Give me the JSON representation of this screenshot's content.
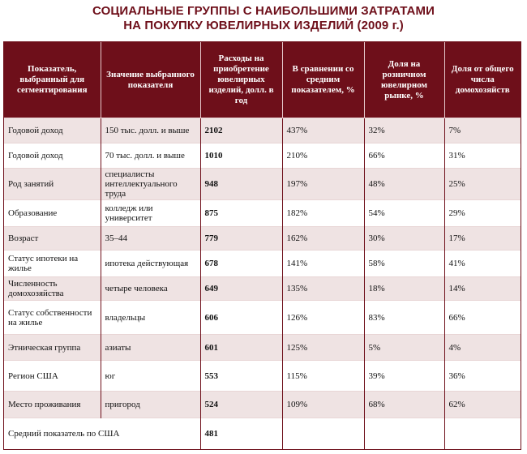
{
  "title": {
    "line1": "СОЦИАЛЬНЫЕ ГРУППЫ С НАИБОЛЬШИМИ ЗАТРАТАМИ",
    "line2": "НА ПОКУПКУ ЮВЕЛИРНЫХ ИЗДЕЛИЙ (2009 г.)"
  },
  "table": {
    "headers": [
      "Показатель, выбранный для сегментирования",
      "Значение выбранного показателя",
      "Расходы на приобретение ювелирных изделий, долл. в год",
      "В сравнении со средним показателем, %",
      "Доля на розничном ювелирном рынке, %",
      "Доля от общего числа домохозяйств"
    ],
    "rows": [
      {
        "indicator": "Годовой доход",
        "value": "150 тыс. долл. и выше",
        "expense": "2102",
        "vs_avg": "437%",
        "market_share": "32%",
        "household_share": "7%"
      },
      {
        "indicator": "Годовой доход",
        "value": "70 тыс. долл. и выше",
        "expense": "1010",
        "vs_avg": "210%",
        "market_share": "66%",
        "household_share": "31%"
      },
      {
        "indicator": "Род занятий",
        "value": "специалисты интеллектуального труда",
        "expense": "948",
        "vs_avg": "197%",
        "market_share": "48%",
        "household_share": "25%"
      },
      {
        "indicator": "Образование",
        "value": "колледж или университет",
        "expense": "875",
        "vs_avg": "182%",
        "market_share": "54%",
        "household_share": "29%"
      },
      {
        "indicator": "Возраст",
        "value": "35–44",
        "expense": "779",
        "vs_avg": "162%",
        "market_share": "30%",
        "household_share": "17%"
      },
      {
        "indicator": "Статус ипотеки на жилье",
        "value": "ипотека действующая",
        "expense": "678",
        "vs_avg": "141%",
        "market_share": "58%",
        "household_share": "41%"
      },
      {
        "indicator": "Численность домохозяйства",
        "value": "четыре человека",
        "expense": "649",
        "vs_avg": "135%",
        "market_share": "18%",
        "household_share": "14%"
      },
      {
        "indicator": "Статус собственности на жилье",
        "value": "владельцы",
        "expense": "606",
        "vs_avg": "126%",
        "market_share": "83%",
        "household_share": "66%"
      },
      {
        "indicator": "Этническая группа",
        "value": "азиаты",
        "expense": "601",
        "vs_avg": "125%",
        "market_share": "5%",
        "household_share": "4%"
      },
      {
        "indicator": "Регион США",
        "value": "юг",
        "expense": "553",
        "vs_avg": "115%",
        "market_share": "39%",
        "household_share": "36%"
      },
      {
        "indicator": "Место проживания",
        "value": "пригород",
        "expense": "524",
        "vs_avg": "109%",
        "market_share": "68%",
        "household_share": "62%"
      }
    ],
    "footer": {
      "label": "Средний показатель по США",
      "expense": "481"
    }
  }
}
